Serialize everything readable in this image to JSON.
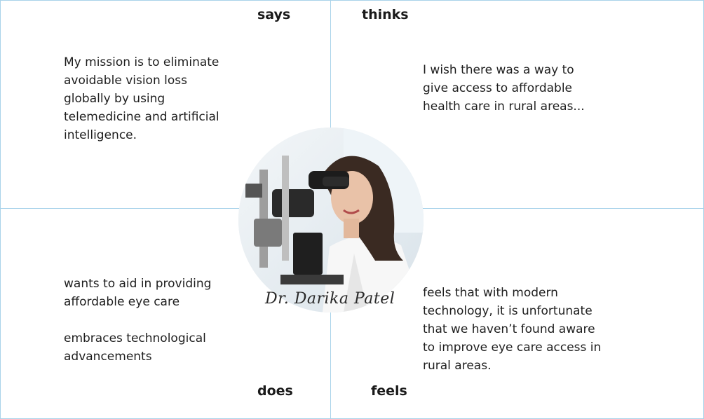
{
  "quadrants": {
    "says": {
      "heading": "says",
      "text": "My mission is to eliminate\navoidable vision loss\nglobally by using\ntelemedicine and artificial\nintelligence."
    },
    "thinks": {
      "heading": "thinks",
      "text": "I wish there was a way to\ngive access to affordable\nhealth care in rural areas..."
    },
    "does": {
      "heading": "does",
      "text_1": "wants to aid in providing\naffordable eye care",
      "text_2": "embraces technological\nadvancements"
    },
    "feels": {
      "heading": "feels",
      "text": "feels that with modern\ntechnology, it is unfortunate\nthat we haven’t found aware\nto improve eye care access in\nrural areas."
    }
  },
  "persona": {
    "name": "Dr. Darika Patel"
  },
  "colors": {
    "grid_line": "#a9d3ea"
  }
}
